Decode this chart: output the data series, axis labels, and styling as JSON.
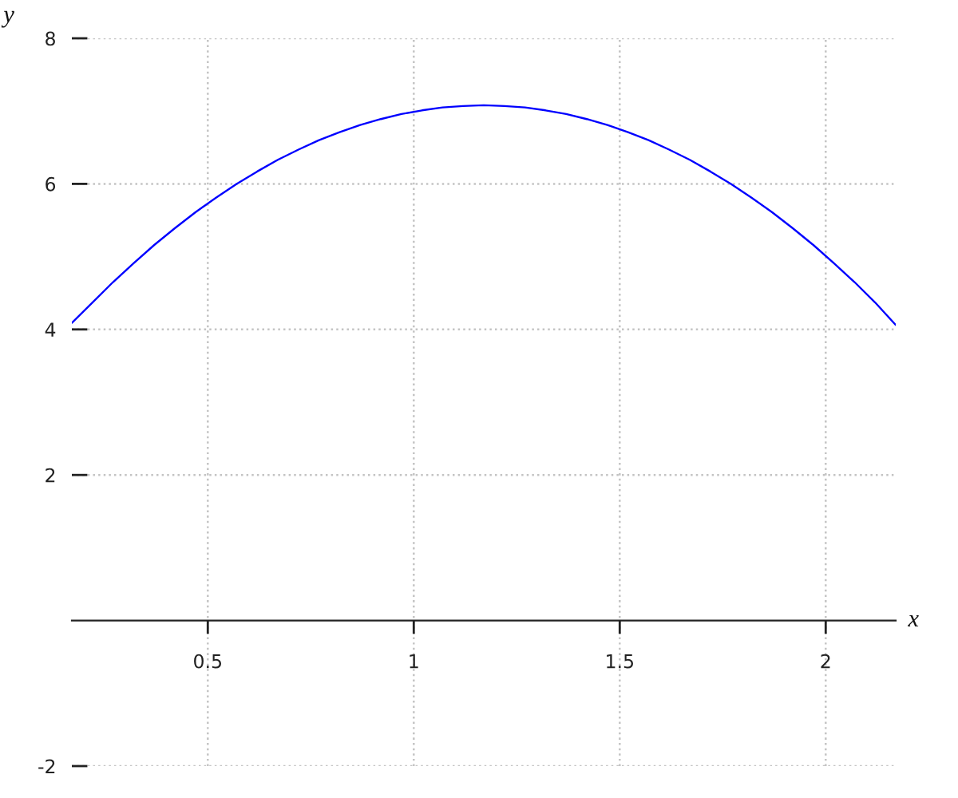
{
  "chart_data": {
    "type": "line",
    "xlabel": "x",
    "ylabel": "y",
    "x": [
      0.17,
      0.22,
      0.27,
      0.32,
      0.37,
      0.42,
      0.47,
      0.52,
      0.57,
      0.62,
      0.67,
      0.72,
      0.77,
      0.82,
      0.87,
      0.92,
      0.97,
      1.02,
      1.07,
      1.12,
      1.17,
      1.22,
      1.27,
      1.32,
      1.37,
      1.42,
      1.47,
      1.52,
      1.57,
      1.62,
      1.67,
      1.72,
      1.77,
      1.82,
      1.87,
      1.92,
      1.97,
      2.02,
      2.07,
      2.12,
      2.17
    ],
    "series": [
      {
        "color": "#0000ff",
        "values": [
          4.09,
          4.37,
          4.65,
          4.91,
          5.16,
          5.39,
          5.61,
          5.81,
          6.0,
          6.17,
          6.33,
          6.47,
          6.6,
          6.71,
          6.81,
          6.89,
          6.96,
          7.01,
          7.05,
          7.07,
          7.08,
          7.07,
          7.05,
          7.01,
          6.96,
          6.89,
          6.81,
          6.71,
          6.6,
          6.47,
          6.33,
          6.17,
          6.0,
          5.81,
          5.61,
          5.39,
          5.16,
          4.91,
          4.65,
          4.37,
          4.06
        ]
      }
    ],
    "xlim": [
      0.17,
      2.17
    ],
    "ylim": [
      -2,
      8
    ],
    "xticks": [
      0.5,
      1,
      1.5,
      2
    ],
    "yticks": [
      -2,
      2,
      4,
      6,
      8
    ],
    "grid": true,
    "line_style": "solid"
  }
}
